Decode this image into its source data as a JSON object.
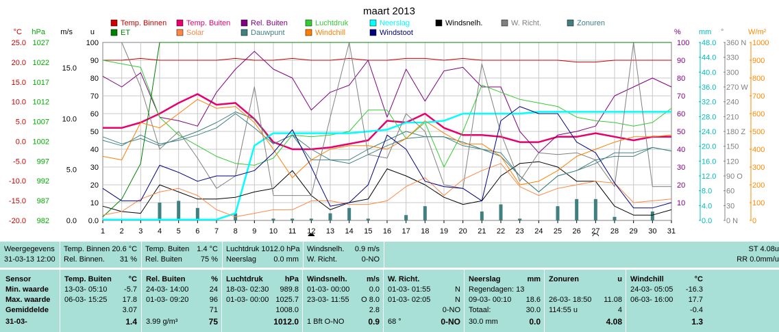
{
  "chart_data": {
    "type": "line",
    "title": "maart 2013",
    "x": [
      1,
      2,
      3,
      4,
      5,
      6,
      7,
      8,
      9,
      10,
      11,
      12,
      13,
      14,
      15,
      16,
      17,
      18,
      19,
      20,
      21,
      22,
      23,
      24,
      25,
      26,
      27,
      28,
      29,
      30,
      31
    ],
    "x_ticks": [
      "1",
      "2",
      "3",
      "4",
      "5",
      "6",
      "7",
      "8",
      "9",
      "10",
      "11",
      "12",
      "13",
      "14",
      "15",
      "16",
      "17",
      "18",
      "19",
      "20",
      "21",
      "22",
      "23",
      "24",
      "25",
      "26",
      "27",
      "28",
      "29",
      "30",
      "31"
    ],
    "ylim_u": [
      0,
      100
    ],
    "grid": true,
    "legend_position": "top",
    "axes": {
      "temp_c": {
        "label": "°C",
        "ticks": [
          "25.0",
          "20.0",
          "15.0",
          "10.0",
          "5.0",
          "0.0",
          "-5.0",
          "-10.0",
          "-15.0",
          "-20.0"
        ],
        "color": "#cc0000"
      },
      "hpa": {
        "label": "hPa",
        "ticks": [
          "1027",
          "1022",
          "1017",
          "1012",
          "1007",
          "1002",
          "997",
          "992",
          "987",
          "982"
        ],
        "color": "#00aa00"
      },
      "ms": {
        "label": "m/s",
        "ticks": [
          "15.0",
          "10.0",
          "5.0",
          "0.0"
        ],
        "color": "#000000"
      },
      "u": {
        "label": "u",
        "ticks": [
          "100",
          "90",
          "80",
          "70",
          "60",
          "50",
          "40",
          "30",
          "20",
          "10",
          "0.0"
        ],
        "color": "#000000"
      },
      "pct": {
        "label": "%",
        "ticks": [
          "100",
          "90",
          "80",
          "70",
          "60",
          "50",
          "40",
          "30",
          "20",
          "10"
        ],
        "color": "#800080"
      },
      "mm": {
        "label": "mm",
        "ticks": [
          "48.0",
          "44.0",
          "40.0",
          "36.0",
          "32.0",
          "28.0",
          "24.0",
          "20.0",
          "16.0",
          "12.0",
          "8.0",
          "4.0",
          "0.0"
        ],
        "color": "#00bbbb"
      },
      "deg": {
        "label": "°",
        "ticks": [
          "360 N",
          "330",
          "300",
          "270 W",
          "240",
          "210",
          "180 Z",
          "150",
          "120",
          "90 O",
          "60",
          "30",
          "0 N"
        ],
        "color": "#808080"
      },
      "wm2": {
        "label": "W/m²",
        "ticks": [
          "1000",
          "900",
          "800",
          "700",
          "600",
          "500",
          "400",
          "300",
          "200",
          "100",
          "0"
        ],
        "color": "#ff8800"
      }
    },
    "legend": [
      {
        "name": "Temp. Binnen",
        "color": "#cc0000"
      },
      {
        "name": "Temp. Buiten",
        "color": "#e8006e"
      },
      {
        "name": "Rel. Buiten",
        "color": "#800080"
      },
      {
        "name": "Luchtdruk",
        "color": "#33cc33"
      },
      {
        "name": "Neerslag",
        "color": "#00ffff"
      },
      {
        "name": "Windsnelh.",
        "color": "#000000"
      },
      {
        "name": "W. Richt.",
        "color": "#808080"
      },
      {
        "name": "Zonuren",
        "color": "#408080"
      },
      {
        "name": "ET",
        "color": "#008000"
      },
      {
        "name": "Solar",
        "color": "#ff8844"
      },
      {
        "name": "Dauwpunt",
        "color": "#408080"
      },
      {
        "name": "Windchill",
        "color": "#ff8000"
      },
      {
        "name": "Windstoot",
        "color": "#000080"
      }
    ],
    "series": [
      {
        "name": "Temp. Binnen",
        "axis": "u",
        "color": "#cc0000",
        "width": 1,
        "values": [
          90,
          90,
          91,
          90,
          90,
          90,
          90,
          91,
          90,
          90,
          91,
          90,
          90,
          91,
          90,
          90,
          91,
          91,
          90,
          91,
          90,
          90,
          90,
          90,
          90,
          89,
          89,
          90,
          90,
          90,
          90
        ]
      },
      {
        "name": "Temp. Buiten",
        "axis": "u",
        "color": "#e8006e",
        "width": 2.5,
        "values": [
          52,
          52,
          55,
          60,
          66,
          71,
          65,
          66,
          57,
          44,
          40,
          40,
          41,
          43,
          45,
          56,
          55,
          60,
          52,
          48,
          48,
          47,
          44,
          44,
          47,
          47,
          49,
          47,
          45,
          47,
          47
        ]
      },
      {
        "name": "Rel. Buiten",
        "axis": "u",
        "color": "#800080",
        "width": 1,
        "values": [
          81,
          75,
          83,
          58,
          56,
          53,
          72,
          85,
          95,
          85,
          80,
          62,
          72,
          76,
          90,
          58,
          85,
          67,
          84,
          86,
          75,
          75,
          50,
          38,
          48,
          50,
          53,
          70,
          75,
          80,
          75
        ]
      },
      {
        "name": "Luchtdruk",
        "axis": "u",
        "color": "#33cc33",
        "width": 1,
        "values": [
          90,
          88,
          86,
          58,
          48,
          42,
          36,
          32,
          31,
          35,
          48,
          47,
          48,
          50,
          62,
          62,
          46,
          55,
          30,
          50,
          76,
          72,
          68,
          66,
          64,
          58,
          56,
          55,
          53,
          55,
          63
        ]
      },
      {
        "name": "Neerslag",
        "axis": "u",
        "color": "#00ffff",
        "width": 2.5,
        "values": [
          0.5,
          0.5,
          0.5,
          0.5,
          0.5,
          0.5,
          0.5,
          4,
          42,
          49,
          49,
          49,
          49,
          49,
          50,
          51,
          55,
          55,
          56,
          60,
          60,
          60,
          60,
          61,
          61,
          61,
          61,
          61,
          61,
          61,
          61
        ]
      },
      {
        "name": "Windsnelh.",
        "axis": "u",
        "color": "#000000",
        "width": 1,
        "values": [
          8,
          5,
          4,
          20,
          16,
          12,
          12,
          13,
          16,
          18,
          28,
          14,
          6,
          10,
          12,
          29,
          25,
          20,
          13,
          9,
          11,
          25,
          32,
          33,
          30,
          22,
          22,
          8,
          3,
          3,
          6
        ]
      },
      {
        "name": "W. Richt.",
        "axis": "u",
        "color": "#808080",
        "width": 1,
        "values": [
          100,
          100,
          75,
          40,
          50,
          35,
          18,
          25,
          75,
          14,
          14,
          14,
          58,
          100,
          37,
          35,
          60,
          50,
          20,
          18,
          88,
          49,
          22,
          38,
          37,
          38,
          34,
          19,
          100,
          19,
          19
        ]
      },
      {
        "name": "Zonuren",
        "axis": "u",
        "color": "#408080",
        "width": 1,
        "values": [
          47,
          43,
          46,
          42,
          46,
          50,
          55,
          61,
          57,
          43,
          48,
          34,
          34,
          34,
          40,
          45,
          50,
          47,
          47,
          44,
          40,
          38,
          25,
          16,
          25,
          28,
          32,
          38,
          38,
          41,
          39
        ]
      },
      {
        "name": "ET",
        "axis": "u",
        "color": "#008000",
        "width": 1,
        "values": [
          2,
          12,
          32,
          100,
          100,
          100,
          100,
          100,
          100,
          100,
          100,
          100,
          100,
          100,
          100,
          100,
          100,
          100,
          100,
          100,
          100,
          100,
          100,
          100,
          100,
          100,
          100,
          100,
          100,
          100,
          100
        ]
      },
      {
        "name": "Solar",
        "axis": "u",
        "color": "#ff8844",
        "width": 1,
        "values": [
          3,
          5,
          12,
          16,
          18,
          14,
          6,
          2,
          4,
          6,
          6,
          11,
          11,
          9,
          9,
          11,
          19,
          24,
          14,
          23,
          28,
          32,
          19,
          14,
          18,
          20,
          22,
          21,
          10,
          11,
          12
        ]
      },
      {
        "name": "Dauwpunt",
        "axis": "u",
        "color": "#408080",
        "width": 1,
        "values": [
          45,
          42,
          48,
          43,
          45,
          48,
          52,
          60,
          52,
          43,
          48,
          40,
          34,
          32,
          37,
          42,
          46,
          47,
          47,
          42,
          40,
          36,
          25,
          16,
          25,
          28,
          34,
          36,
          36,
          41,
          39
        ]
      },
      {
        "name": "Windchill",
        "axis": "u",
        "color": "#ff8000",
        "width": 1,
        "values": [
          36,
          34,
          55,
          52,
          60,
          68,
          63,
          64,
          55,
          40,
          24,
          34,
          40,
          42,
          42,
          40,
          46,
          56,
          49,
          43,
          43,
          36,
          20,
          22,
          28,
          36,
          40,
          44,
          47,
          47,
          48
        ]
      },
      {
        "name": "Windstoot",
        "axis": "u",
        "color": "#000080",
        "width": 1,
        "values": [
          18,
          11,
          11,
          31,
          27,
          22,
          25,
          25,
          28,
          38,
          51,
          30,
          8,
          10,
          20,
          48,
          40,
          22,
          19,
          18,
          11,
          56,
          64,
          60,
          60,
          44,
          38,
          21,
          7,
          7,
          10
        ]
      }
    ],
    "bars": {
      "name": "Zonuren",
      "axis": "u",
      "color": "#408080",
      "values": [
        0,
        0,
        0,
        10,
        11,
        7,
        0,
        4,
        0,
        1,
        1,
        1,
        4,
        7,
        1,
        0,
        3,
        8,
        0,
        0,
        5,
        9,
        1,
        0,
        8,
        12,
        12,
        2,
        0,
        5,
        0
      ]
    },
    "moon_markers": [
      {
        "day": 12,
        "phase": "new"
      },
      {
        "day": 27,
        "phase": "full"
      }
    ]
  },
  "panel_top": {
    "station": [
      "Weergegevens",
      "31-03-13 12:00"
    ],
    "inside": [
      "Temp. Binnen 20.6 °C",
      "Rel. Binnen.",
      "31 %"
    ],
    "outside": [
      "Temp. Buiten",
      "1.4 °C",
      "Rel. Buiten",
      "75 %"
    ],
    "pressure": [
      "Luchtdruk 1012.0 hPa",
      "Neerslag",
      "0.0 mm"
    ],
    "wind": [
      "Windsnelh.",
      "0.9 m/s",
      "W. Richt.",
      "0-NO"
    ],
    "right": [
      "ST 4.08u",
      "RR 0.0mm/u"
    ]
  },
  "stats": {
    "rowlabels": [
      "Sensor",
      "Min. waarde",
      "Max. waarde",
      "Gemiddelde",
      "31-03-"
    ],
    "cols": [
      {
        "title": "Temp. Buiten",
        "unit": "°C",
        "rows": [
          [
            "13-03- 05:10",
            "-5.7"
          ],
          [
            "06-03- 15:25",
            "17.8"
          ],
          [
            "",
            "3.07"
          ],
          [
            "",
            "1.4"
          ]
        ]
      },
      {
        "title": "Rel. Buiten",
        "unit": "%",
        "rows": [
          [
            "24-03- 14:00",
            "24"
          ],
          [
            "01-03- 09:20",
            "96"
          ],
          [
            "",
            "71"
          ],
          [
            "3.99 g/m³",
            "75"
          ]
        ]
      },
      {
        "title": "Luchtdruk",
        "unit": "hPa",
        "rows": [
          [
            "18-03- 02:30",
            "989.8"
          ],
          [
            "01-03- 00:00",
            "1025.7"
          ],
          [
            "",
            "1008.0"
          ],
          [
            "",
            "1012.0"
          ]
        ]
      },
      {
        "title": "Windsnelh.",
        "unit": "m/s",
        "rows": [
          [
            "01-03- 00:00",
            "0.0"
          ],
          [
            "23-03- 11:55",
            "O 8.0"
          ],
          [
            "",
            "2.8"
          ],
          [
            "1 Bft O-NO",
            "0.9"
          ]
        ]
      },
      {
        "title": "W. Richt.",
        "unit": "",
        "rows": [
          [
            "01-03- 01:55",
            "N"
          ],
          [
            "01-03- 02:05",
            "N"
          ],
          [
            "",
            "0-NO"
          ],
          [
            "68 °",
            "0-NO"
          ]
        ]
      },
      {
        "title": "Neerslag",
        "unit": "mm",
        "rows": [
          [
            "Regendagen: 13",
            ""
          ],
          [
            "09-03- 00:10",
            "18.6"
          ],
          [
            "Totaal:",
            "30.0"
          ],
          [
            "30.0 mm",
            "0.0"
          ]
        ]
      },
      {
        "title": "Zonuren",
        "unit": "u",
        "rows": [
          [
            "",
            ""
          ],
          [
            "26-03- 18:50",
            "11.08"
          ],
          [
            "114:55 u",
            "4"
          ],
          [
            "",
            "4.08"
          ]
        ]
      },
      {
        "title": "Windchill",
        "unit": "°C",
        "rows": [
          [
            "24-03- 05:05",
            "-16.3"
          ],
          [
            "06-03- 16:00",
            "17.7"
          ],
          [
            "",
            "-0.4"
          ],
          [
            "",
            "1.3"
          ]
        ]
      }
    ]
  }
}
